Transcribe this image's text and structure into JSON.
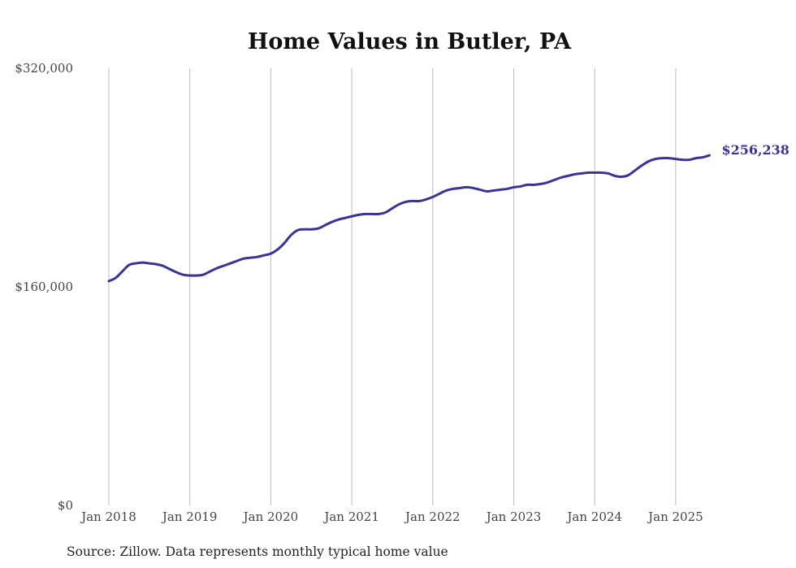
{
  "chart_data": {
    "type": "line",
    "title": "Home Values in Butler, PA",
    "xlabel": "",
    "ylabel": "",
    "start_month": "Jan 2018",
    "frequency": "monthly",
    "x_tick_labels": [
      "Jan 2018",
      "Jan 2019",
      "Jan 2020",
      "Jan 2021",
      "Jan 2022",
      "Jan 2023",
      "Jan 2024",
      "Jan 2025"
    ],
    "y_tick_labels": [
      "$0",
      "$160,000",
      "$320,000"
    ],
    "y_ticks": [
      0,
      160000,
      320000
    ],
    "ylim": [
      0,
      320000
    ],
    "grid": "vertical",
    "series": [
      {
        "name": "Typical home value",
        "color": "#3a3493",
        "values": [
          164200,
          166500,
          171300,
          176000,
          177200,
          177800,
          177200,
          176600,
          175400,
          173000,
          170700,
          168900,
          168300,
          168300,
          168900,
          171300,
          173600,
          175400,
          177200,
          179000,
          180700,
          181300,
          181900,
          183100,
          184300,
          187300,
          192000,
          197900,
          201500,
          202100,
          202100,
          202700,
          205000,
          207400,
          209200,
          210400,
          211600,
          212700,
          213300,
          213300,
          213300,
          214500,
          217500,
          220400,
          222200,
          222800,
          222800,
          224000,
          225800,
          228200,
          230500,
          231700,
          232300,
          232900,
          232300,
          231100,
          229900,
          230500,
          231100,
          231700,
          232900,
          233500,
          234700,
          234700,
          235300,
          236400,
          238200,
          240000,
          241200,
          242400,
          243000,
          243600,
          243600,
          243600,
          243000,
          241200,
          240600,
          241800,
          245300,
          248900,
          251900,
          253600,
          254200,
          254200,
          253600,
          253000,
          253000,
          254200,
          254800,
          256238
        ]
      }
    ],
    "end_label": "$256,238",
    "source": "Source: Zillow. Data represents monthly typical home value"
  }
}
